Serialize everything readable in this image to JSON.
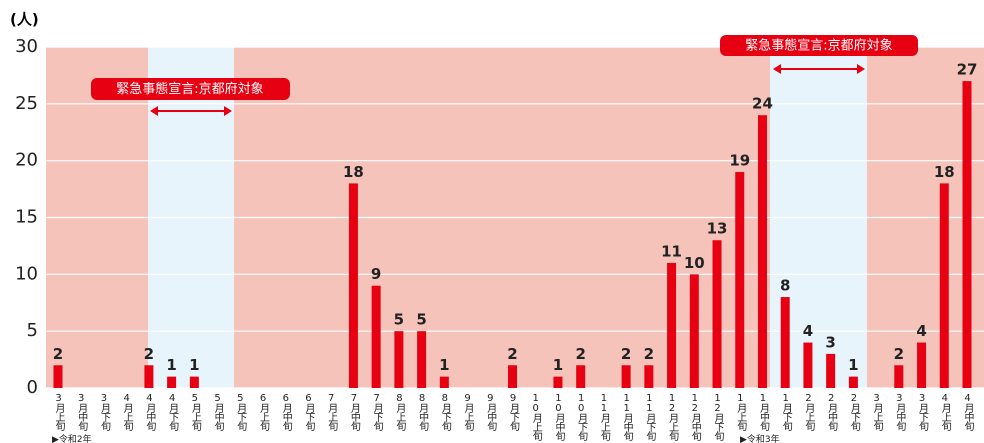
{
  "chart_data": {
    "type": "bar",
    "y_label": "(人)",
    "categories": [
      "3月上旬",
      "3月中旬",
      "3月下旬",
      "4月上旬",
      "4月中旬",
      "4月下旬",
      "5月上旬",
      "5月中旬",
      "5月下旬",
      "6月上旬",
      "6月中旬",
      "6月下旬",
      "7月上旬",
      "7月中旬",
      "7月下旬",
      "8月上旬",
      "8月中旬",
      "8月下旬",
      "9月上旬",
      "9月中旬",
      "9月下旬",
      "10月上旬",
      "10月中旬",
      "10月下旬",
      "11月上旬",
      "11月中旬",
      "11月下旬",
      "12月上旬",
      "12月中旬",
      "12月下旬",
      "1月上旬",
      "1月中旬",
      "1月下旬",
      "2月上旬",
      "2月中旬",
      "2月下旬",
      "3月上旬",
      "3月中旬",
      "3月下旬",
      "4月上旬",
      "4月中旬"
    ],
    "values": [
      2,
      0,
      0,
      0,
      2,
      1,
      1,
      0,
      0,
      0,
      0,
      0,
      0,
      18,
      9,
      5,
      5,
      1,
      0,
      0,
      2,
      0,
      1,
      2,
      0,
      2,
      2,
      11,
      10,
      13,
      19,
      24,
      8,
      4,
      3,
      1,
      0,
      2,
      4,
      18,
      27
    ],
    "color": "#e60012",
    "ylim": [
      0,
      30
    ],
    "yticks": [
      0,
      5,
      10,
      15,
      20,
      25,
      30
    ],
    "grid": true,
    "era_labels": [
      "▶令和2年",
      "▶令和3年"
    ],
    "annotations": [
      "緊急事態宣言:京都府対象",
      "緊急事態宣言:京都府対象"
    ]
  }
}
